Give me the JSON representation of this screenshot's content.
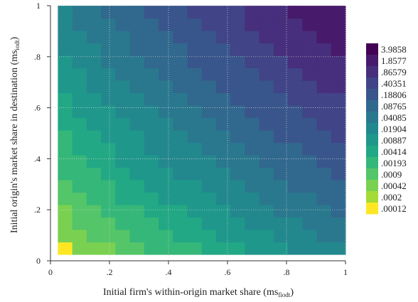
{
  "chart_data": {
    "type": "heatmap",
    "xlabel": "Initial firm's within-origin market share (ms",
    "xlabel_sub": "fiodt",
    "xlabel_end": ")",
    "ylabel": "Initial origin's market share in destination (ms",
    "ylabel_sub": "iodt",
    "ylabel_end": ")",
    "xlim": [
      0,
      1
    ],
    "ylim": [
      0,
      1
    ],
    "x_ticks": [
      {
        "value": 0,
        "label": "0"
      },
      {
        "value": 0.2,
        "label": ".2"
      },
      {
        "value": 0.4,
        "label": ".4"
      },
      {
        "value": 0.6,
        "label": ".6"
      },
      {
        "value": 0.8,
        "label": ".8"
      },
      {
        "value": 1,
        "label": "1"
      }
    ],
    "y_ticks": [
      {
        "value": 0,
        "label": "0"
      },
      {
        "value": 0.2,
        "label": ".2"
      },
      {
        "value": 0.4,
        "label": ".4"
      },
      {
        "value": 0.6,
        "label": ".6"
      },
      {
        "value": 0.8,
        "label": ".8"
      },
      {
        "value": 1,
        "label": "1"
      }
    ],
    "grid": true,
    "legend_position": "right",
    "grid_cells": {
      "x_start": 0.025,
      "x_end": 1.0,
      "y_start": 0.025,
      "y_end": 1.0,
      "n": 20
    },
    "legend": [
      {
        "label": "3.9858",
        "color": "#440154"
      },
      {
        "label": "1.8577",
        "color": "#481a6c"
      },
      {
        "label": ".86579",
        "color": "#472f7d"
      },
      {
        "label": ".40351",
        "color": "#414487"
      },
      {
        "label": ".18806",
        "color": "#39568c"
      },
      {
        "label": ".08765",
        "color": "#31688e"
      },
      {
        "label": ".04085",
        "color": "#2a788e"
      },
      {
        "label": ".01904",
        "color": "#23888e"
      },
      {
        "label": ".00887",
        "color": "#1f988b"
      },
      {
        "label": ".00414",
        "color": "#22a884"
      },
      {
        "label": ".00193",
        "color": "#35b779"
      },
      {
        "label": ".0009",
        "color": "#54c568"
      },
      {
        "label": ".00042",
        "color": "#7ad151"
      },
      {
        "label": ".0002",
        "color": "#a5db36"
      },
      {
        "label": ".00012",
        "color": "#fde725"
      }
    ]
  }
}
